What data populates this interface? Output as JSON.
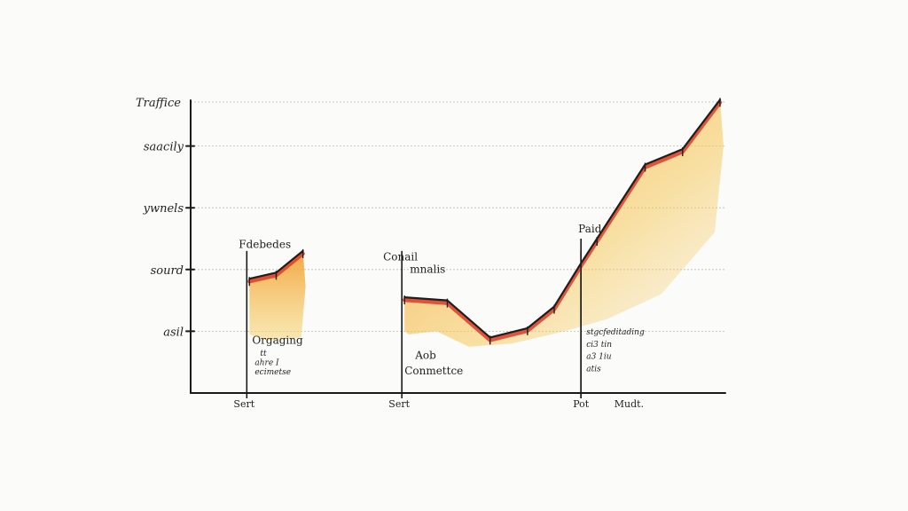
{
  "chart_data": {
    "type": "area",
    "title": "",
    "ylabel": "Traffice",
    "xlabel": "",
    "ylim": [
      0,
      5
    ],
    "yticks": [
      {
        "value": 1,
        "label": "asil"
      },
      {
        "value": 2,
        "label": "sourd"
      },
      {
        "value": 3,
        "label": "ywnels"
      },
      {
        "value": 4,
        "label": "saacily"
      }
    ],
    "grid": true,
    "xlim": [
      0,
      100
    ],
    "xticks": [
      {
        "value": 10,
        "label": "Sert"
      },
      {
        "value": 39,
        "label": "Sert"
      },
      {
        "value": 73,
        "label": "Pot"
      },
      {
        "value": 82,
        "label": "Mudt."
      }
    ],
    "series": [
      {
        "x": [
          11,
          16,
          21
        ],
        "y": [
          1.85,
          1.95,
          2.3
        ]
      },
      {
        "x": [
          40,
          48,
          56,
          63,
          68,
          73,
          76,
          85,
          92,
          99
        ],
        "y": [
          1.55,
          1.5,
          0.9,
          1.05,
          1.4,
          2.1,
          2.5,
          3.7,
          3.95,
          4.75
        ]
      }
    ],
    "markers": [
      10.5,
      39.5,
      73
    ],
    "annotations": [
      {
        "text": "Fdebedes",
        "x": 9,
        "y": 2.35,
        "size": "big"
      },
      {
        "text": "Orgaging",
        "x": 11.5,
        "y": 0.8,
        "size": "big"
      },
      {
        "text": "tt",
        "x": 13,
        "y": 0.6,
        "size": "small"
      },
      {
        "text": "ahre I",
        "x": 12,
        "y": 0.45,
        "size": "small"
      },
      {
        "text": "ecimetse",
        "x": 12,
        "y": 0.3,
        "size": "small"
      },
      {
        "text": "Conail",
        "x": 36,
        "y": 2.15,
        "size": "big"
      },
      {
        "text": "mnalis",
        "x": 41,
        "y": 1.95,
        "size": "big"
      },
      {
        "text": "Aob",
        "x": 42,
        "y": 0.55,
        "size": "big"
      },
      {
        "text": "Conmettce",
        "x": 40,
        "y": 0.3,
        "size": "big"
      },
      {
        "text": "Paid",
        "x": 72.5,
        "y": 2.6,
        "size": "big"
      },
      {
        "text": "stgcfeditading",
        "x": 74,
        "y": 0.95,
        "size": "small"
      },
      {
        "text": "ci3 tin",
        "x": 74,
        "y": 0.75,
        "size": "small"
      },
      {
        "text": "a3 1iu",
        "x": 74,
        "y": 0.55,
        "size": "small"
      },
      {
        "text": "atis",
        "x": 74,
        "y": 0.35,
        "size": "small"
      }
    ],
    "colors": {
      "fill_yellow": "#f7c640",
      "fill_orange": "#f2a23a",
      "edge_red": "#dc3b2a",
      "line": "#1e1e1e"
    }
  }
}
